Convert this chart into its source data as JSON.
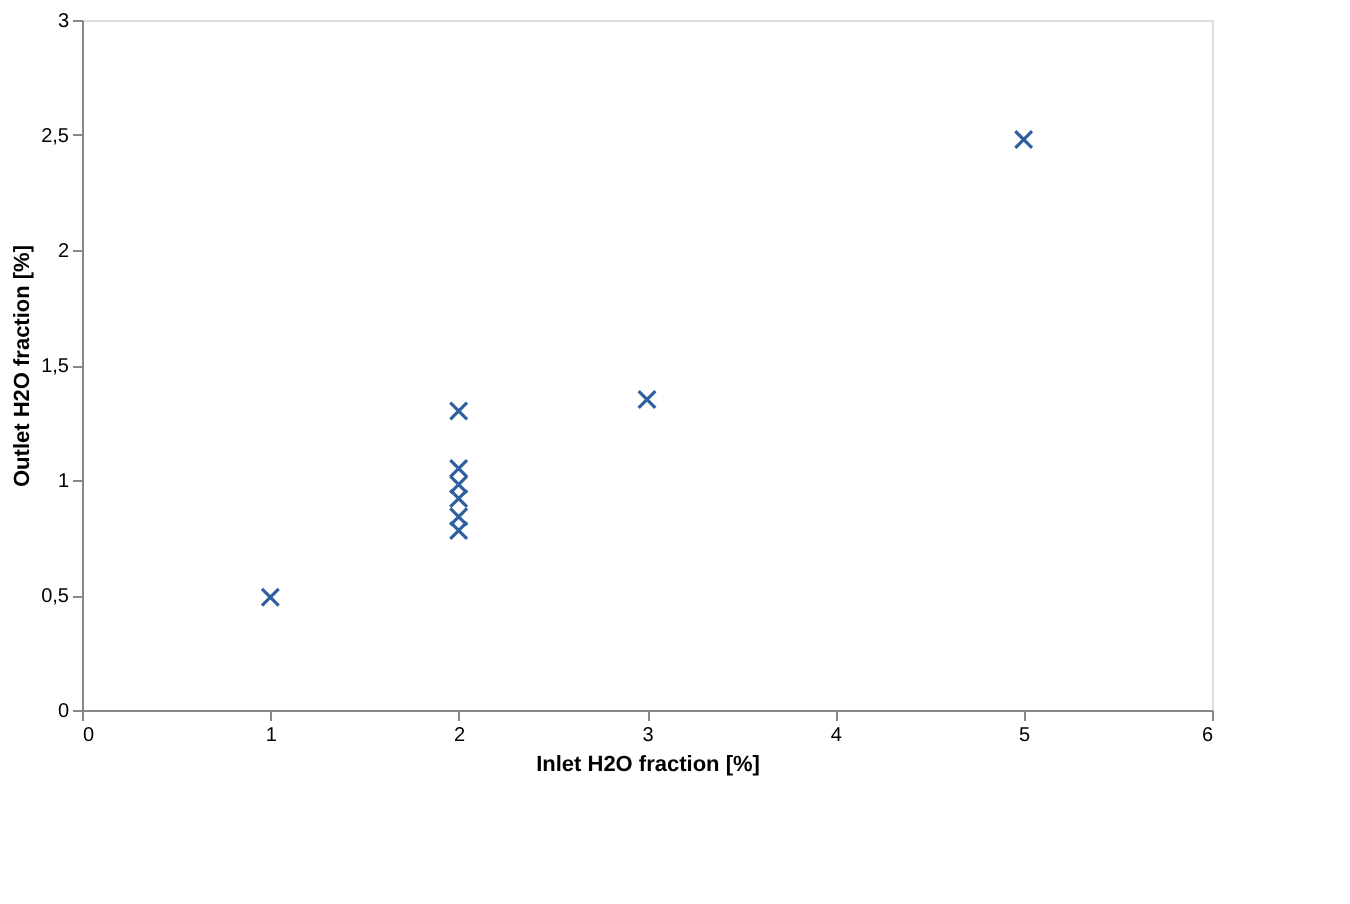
{
  "chart_data": {
    "type": "scatter",
    "xlabel": "Inlet H2O fraction [%]",
    "ylabel": "Outlet H2O fraction [%]",
    "x": [
      1,
      2,
      2,
      2,
      2,
      2,
      2,
      3,
      5
    ],
    "series": [
      {
        "color": "#2e5f9e",
        "values": [
          0.49,
          1.3,
          1.05,
          0.98,
          0.92,
          0.84,
          0.78,
          1.35,
          2.48
        ]
      }
    ],
    "xlim": [
      0,
      6
    ],
    "xticks": [
      0,
      1,
      2,
      3,
      4,
      5,
      6
    ],
    "ylim": [
      0,
      3
    ],
    "yticks": [
      0,
      {
        "value": 0.5,
        "label": "0,5"
      },
      1,
      {
        "value": 1.5,
        "label": "1,5"
      },
      2,
      {
        "value": 2.5,
        "label": "2,5"
      },
      3
    ],
    "grid": false,
    "marker": "cross",
    "legend": false
  }
}
